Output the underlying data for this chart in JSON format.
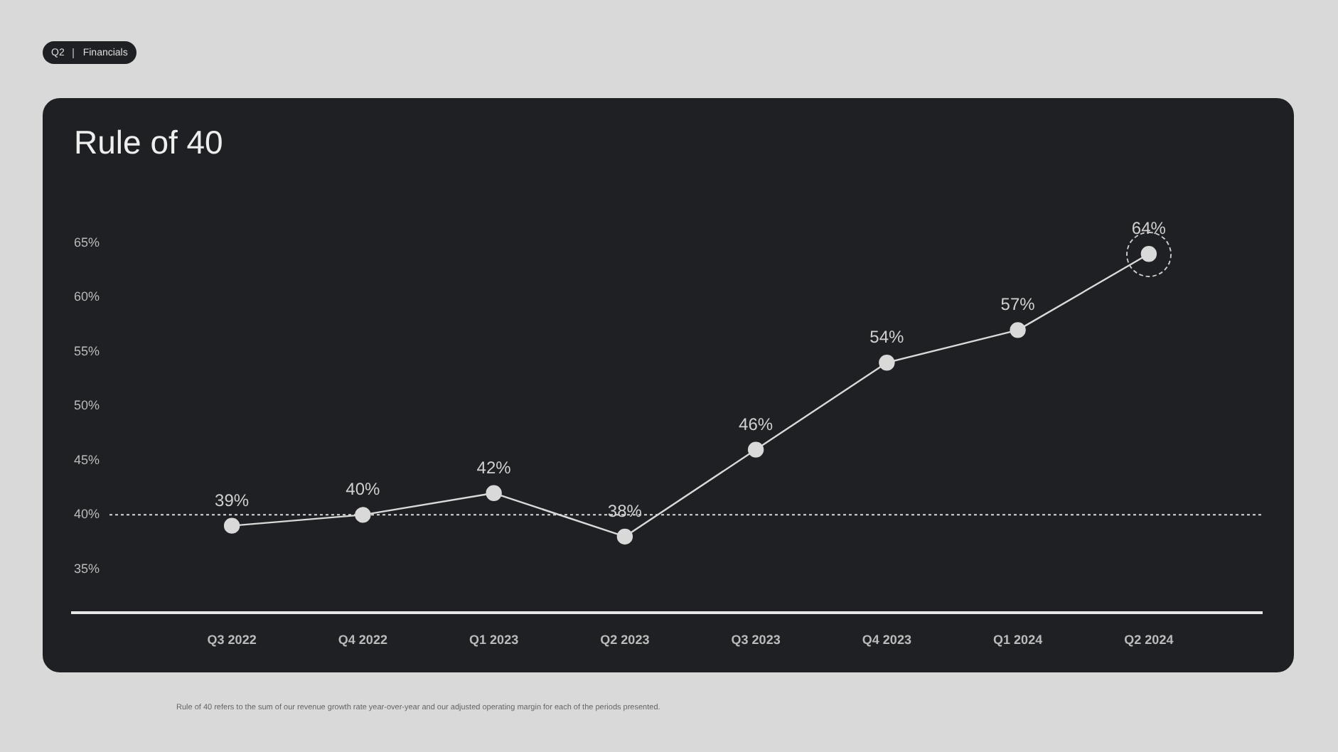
{
  "chart_data": {
    "type": "line",
    "title": "Rule of 40",
    "categories": [
      "Q3 2022",
      "Q4 2022",
      "Q1 2023",
      "Q2 2023",
      "Q3 2023",
      "Q4 2023",
      "Q1 2024",
      "Q2 2024"
    ],
    "series": [
      {
        "color": "#d9d9d9",
        "values": [
          39,
          40,
          42,
          38,
          46,
          54,
          57,
          64
        ],
        "value_labels": [
          "39%",
          "40%",
          "42%",
          "38%",
          "46%",
          "54%",
          "57%",
          "64%"
        ]
      }
    ],
    "ylim": [
      31,
      65
    ],
    "yticks": [
      {
        "value": 35,
        "label": "35%"
      },
      {
        "value": 40,
        "label": "40%"
      },
      {
        "value": 45,
        "label": "45%"
      },
      {
        "value": 50,
        "label": "50%"
      },
      {
        "value": 55,
        "label": "55%"
      },
      {
        "value": 60,
        "label": "60%"
      },
      {
        "value": 65,
        "label": "65%"
      }
    ],
    "ref_lines": [
      {
        "axis": "y",
        "value": 40,
        "color": "#d9d9d9",
        "line_style": "dotted"
      }
    ],
    "grid": false,
    "legend": false,
    "marker": "circle",
    "line_style": "solid",
    "annotations": [
      "Q2",
      "Financials",
      "Rule of 40 refers to the sum of our revenue growth rate year-over-year and our adjusted operating margin for each of the periods presented."
    ]
  }
}
